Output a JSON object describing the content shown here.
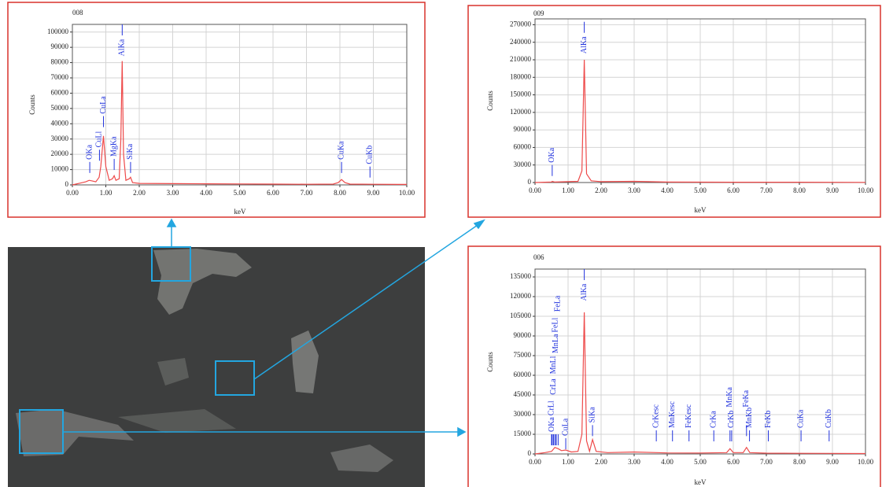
{
  "chart_data": [
    {
      "type": "line",
      "title": "008",
      "x_label": "keV",
      "y_label": "Counts",
      "color": "#ee4a4a",
      "grid": true,
      "xlim": [
        0,
        10
      ],
      "ylim": [
        0,
        105000
      ],
      "xticks": [
        {
          "value": 0,
          "label": "0.00"
        },
        {
          "value": 1,
          "label": "1.00"
        },
        {
          "value": 2,
          "label": "2.00"
        },
        {
          "value": 3,
          "label": "3.00"
        },
        {
          "value": 4,
          "label": "4.00"
        },
        {
          "value": 5,
          "label": "5.00"
        },
        {
          "value": 6,
          "label": "6.00"
        },
        {
          "value": 7,
          "label": "7.00"
        },
        {
          "value": 8,
          "label": "8.00"
        },
        {
          "value": 9,
          "label": "9.00"
        },
        {
          "value": 10,
          "label": "10.00"
        }
      ],
      "yticks": [
        0,
        10000,
        20000,
        30000,
        40000,
        50000,
        60000,
        70000,
        80000,
        90000,
        100000
      ],
      "x": [
        0,
        0.1,
        0.2,
        0.3,
        0.4,
        0.5,
        0.6,
        0.7,
        0.8,
        0.85,
        0.93,
        1.0,
        1.1,
        1.2,
        1.25,
        1.3,
        1.4,
        1.45,
        1.49,
        1.53,
        1.6,
        1.7,
        1.74,
        1.8,
        2.0,
        3,
        4,
        5,
        6,
        7,
        7.8,
        7.95,
        8.05,
        8.15,
        8.3,
        9,
        10
      ],
      "values": [
        0,
        500,
        1000,
        1500,
        2000,
        3000,
        2500,
        2000,
        5000,
        12000,
        32000,
        12000,
        3000,
        4000,
        6000,
        3000,
        4000,
        30000,
        81000,
        20000,
        3000,
        4000,
        5000,
        1500,
        1000,
        800,
        700,
        600,
        500,
        400,
        500,
        1500,
        3500,
        1500,
        500,
        400,
        300
      ],
      "annotations": [
        {
          "text": "OKa",
          "x": 0.52,
          "y": 15000
        },
        {
          "text": "CuLl",
          "x": 0.81,
          "y": 23000
        },
        {
          "text": "CuLa",
          "x": 0.93,
          "y": 45000
        },
        {
          "text": "MgKa",
          "x": 1.25,
          "y": 17000
        },
        {
          "text": "AlKa",
          "x": 1.49,
          "y": 105000
        },
        {
          "text": "SiKa",
          "x": 1.74,
          "y": 15000
        },
        {
          "text": "CuKa",
          "x": 8.05,
          "y": 15000
        },
        {
          "text": "CuKb",
          "x": 8.9,
          "y": 12000
        }
      ]
    },
    {
      "type": "line",
      "title": "009",
      "x_label": "keV",
      "y_label": "Counts",
      "color": "#ee4a4a",
      "grid": true,
      "xlim": [
        0,
        10
      ],
      "ylim": [
        0,
        280000
      ],
      "xticks": [
        {
          "value": 0,
          "label": "0.00"
        },
        {
          "value": 1,
          "label": "1.00"
        },
        {
          "value": 2,
          "label": "2.00"
        },
        {
          "value": 3,
          "label": "3.00"
        },
        {
          "value": 4,
          "label": "4.00"
        },
        {
          "value": 5,
          "label": "5.00"
        },
        {
          "value": 6,
          "label": "6.00"
        },
        {
          "value": 7,
          "label": "7.00"
        },
        {
          "value": 8,
          "label": "8.00"
        },
        {
          "value": 9,
          "label": "9.00"
        },
        {
          "value": 10,
          "label": "10.00"
        }
      ],
      "yticks": [
        0,
        30000,
        60000,
        90000,
        120000,
        150000,
        180000,
        210000,
        240000,
        270000
      ],
      "x": [
        0,
        0.3,
        0.5,
        0.52,
        0.6,
        1.0,
        1.3,
        1.42,
        1.49,
        1.56,
        1.7,
        2,
        3,
        4,
        6,
        8,
        10
      ],
      "values": [
        0,
        500,
        1000,
        2000,
        800,
        1500,
        2000,
        20000,
        210000,
        15000,
        3000,
        1500,
        2000,
        800,
        500,
        600,
        300
      ],
      "annotations": [
        {
          "text": "OKa",
          "x": 0.52,
          "y": 30000
        },
        {
          "text": "AlKa",
          "x": 1.49,
          "y": 275000
        }
      ]
    },
    {
      "type": "line",
      "title": "006",
      "x_label": "keV",
      "y_label": "Counts",
      "color": "#ee4a4a",
      "grid": true,
      "xlim": [
        0,
        10
      ],
      "ylim": [
        0,
        141000
      ],
      "xticks": [
        {
          "value": 0,
          "label": "0.00"
        },
        {
          "value": 1,
          "label": "1.00"
        },
        {
          "value": 2,
          "label": "2.00"
        },
        {
          "value": 3,
          "label": "3.00"
        },
        {
          "value": 4,
          "label": "4.00"
        },
        {
          "value": 5,
          "label": "5.00"
        },
        {
          "value": 6,
          "label": "6.00"
        },
        {
          "value": 7,
          "label": "7.00"
        },
        {
          "value": 8,
          "label": "8.00"
        },
        {
          "value": 9,
          "label": "9.00"
        },
        {
          "value": 10,
          "label": "10.00"
        }
      ],
      "yticks": [
        0,
        15000,
        30000,
        45000,
        60000,
        75000,
        90000,
        105000,
        120000,
        135000
      ],
      "x": [
        0,
        0.3,
        0.5,
        0.6,
        0.7,
        0.8,
        0.93,
        1.1,
        1.3,
        1.42,
        1.49,
        1.56,
        1.65,
        1.74,
        1.85,
        2.2,
        3,
        4,
        5,
        5.8,
        5.9,
        6.0,
        6.3,
        6.4,
        6.5,
        7,
        8,
        9,
        10
      ],
      "values": [
        0,
        1000,
        2000,
        5000,
        4000,
        2500,
        3000,
        1500,
        2000,
        15000,
        108000,
        10000,
        2000,
        11000,
        2000,
        1000,
        1500,
        800,
        700,
        1000,
        4000,
        1000,
        1000,
        5000,
        1000,
        600,
        500,
        400,
        300
      ],
      "annotations": [
        {
          "text": "OKa",
          "x": 0.52,
          "y": 15000
        },
        {
          "text": "CrLl",
          "x": 0.5,
          "y": 15000
        },
        {
          "text": "CrLa",
          "x": 0.57,
          "y": 15000
        },
        {
          "text": "MnLl",
          "x": 0.56,
          "y": 15000
        },
        {
          "text": "MnLa",
          "x": 0.64,
          "y": 15000
        },
        {
          "text": "FeLl",
          "x": 0.62,
          "y": 15000
        },
        {
          "text": "FeLa",
          "x": 0.7,
          "y": 15000
        },
        {
          "text": "CuLa",
          "x": 0.93,
          "y": 12000
        },
        {
          "text": "AlKa",
          "x": 1.49,
          "y": 141000
        },
        {
          "text": "SiKa",
          "x": 1.74,
          "y": 22000
        },
        {
          "text": "CrKesc",
          "x": 3.67,
          "y": 18000
        },
        {
          "text": "MnKesc",
          "x": 4.16,
          "y": 18000
        },
        {
          "text": "FeKesc",
          "x": 4.66,
          "y": 18000
        },
        {
          "text": "CrKa",
          "x": 5.41,
          "y": 18000
        },
        {
          "text": "CrKb",
          "x": 5.95,
          "y": 18000
        },
        {
          "text": "MnKa",
          "x": 5.9,
          "y": 18000
        },
        {
          "text": "MnKb",
          "x": 6.49,
          "y": 18000
        },
        {
          "text": "FeKa",
          "x": 6.4,
          "y": 22000
        },
        {
          "text": "FeKb",
          "x": 7.06,
          "y": 18000
        },
        {
          "text": "CuKa",
          "x": 8.05,
          "y": 18000
        },
        {
          "text": "CuKb",
          "x": 8.9,
          "y": 18000
        }
      ]
    }
  ]
}
